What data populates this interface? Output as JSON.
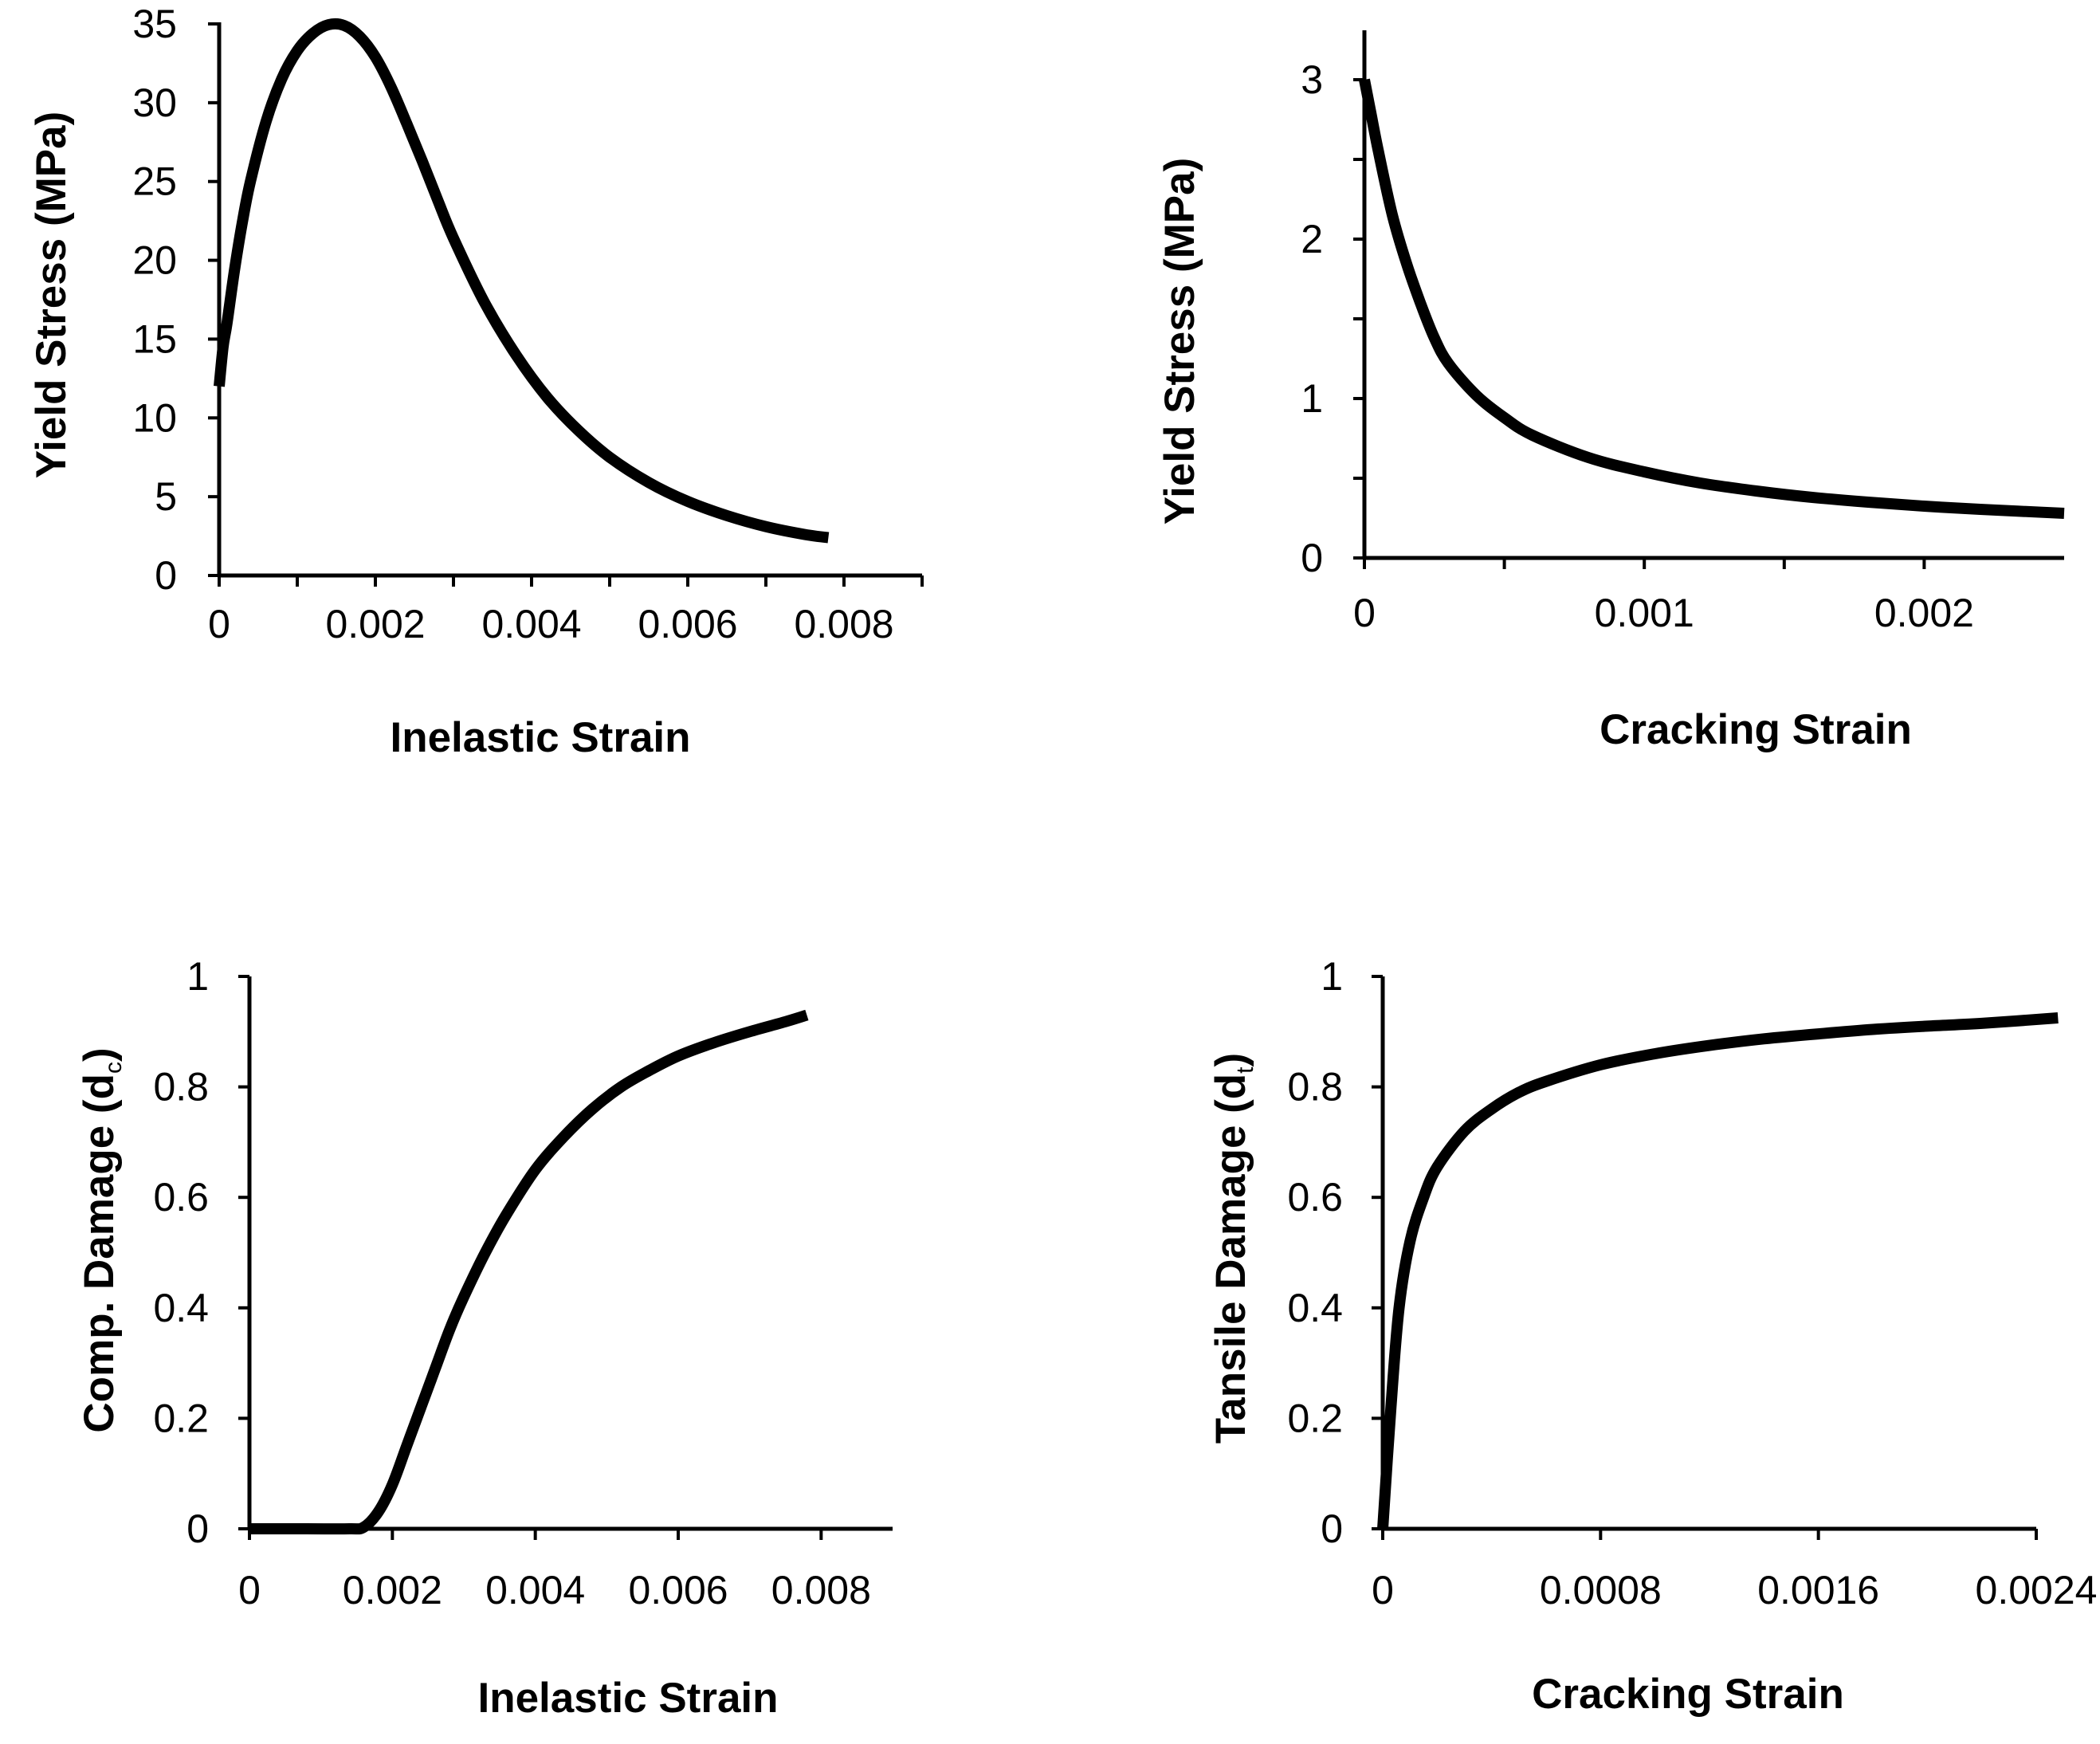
{
  "chart_data": [
    {
      "id": "yield-compression",
      "type": "line",
      "title": "",
      "xlabel": "Inelastic Strain",
      "ylabel": "Yield Stress (MPa)",
      "xlim": [
        0,
        0.009
      ],
      "ylim": [
        0,
        35
      ],
      "xticks": [
        0,
        0.002,
        0.004,
        0.006,
        0.008
      ],
      "xtick_labels": [
        "0",
        "0.002",
        "0.004",
        "0.006",
        "0.008"
      ],
      "x_minor_ticks": [
        0.001,
        0.003,
        0.005,
        0.007,
        0.009
      ],
      "yticks": [
        0,
        5,
        10,
        15,
        20,
        25,
        30,
        35
      ],
      "ytick_labels": [
        "0",
        "5",
        "10",
        "15",
        "20",
        "25",
        "30",
        "35"
      ],
      "y_minor_ticks": [],
      "series": [
        {
          "name": "Yield Stress",
          "color": "#000000",
          "x": [
            0,
            5e-05,
            0.0001,
            0.0002,
            0.0003,
            0.0004,
            0.0006,
            0.0008,
            0.001,
            0.0012,
            0.0014,
            0.0016,
            0.0018,
            0.002,
            0.0022,
            0.0024,
            0.0026,
            0.0028,
            0.003,
            0.0034,
            0.0038,
            0.0042,
            0.0046,
            0.005,
            0.0055,
            0.006,
            0.0065,
            0.007,
            0.0075,
            0.0078
          ],
          "y": [
            12,
            14.5,
            16,
            19.5,
            22.5,
            25,
            28.8,
            31.5,
            33.3,
            34.4,
            34.95,
            34.9,
            34.2,
            32.9,
            31,
            28.7,
            26.3,
            23.8,
            21.4,
            17.3,
            14,
            11.3,
            9.2,
            7.5,
            5.9,
            4.7,
            3.8,
            3.1,
            2.6,
            2.4
          ]
        }
      ]
    },
    {
      "id": "yield-tension",
      "type": "line",
      "title": "",
      "xlabel": "Cracking Strain",
      "ylabel": "Yield Stress (MPa)",
      "xlim": [
        0,
        0.0025
      ],
      "ylim": [
        0,
        3.3
      ],
      "xticks": [
        0,
        0.001,
        0.002
      ],
      "xtick_labels": [
        "0",
        "0.001",
        "0.002"
      ],
      "x_minor_ticks": [
        0.0005,
        0.0015
      ],
      "yticks": [
        0,
        1,
        2,
        3
      ],
      "ytick_labels": [
        "0",
        "1",
        "2",
        "3"
      ],
      "y_minor_ticks": [
        0.5,
        1.5,
        2.5
      ],
      "series": [
        {
          "name": "Yield Stress",
          "color": "#000000",
          "x": [
            0,
            2e-05,
            5e-05,
            0.0001,
            0.00015,
            0.0002,
            0.00025,
            0.0003,
            0.0004,
            0.0005,
            0.0006,
            0.0008,
            0.001,
            0.0012,
            0.0014,
            0.0016,
            0.0018,
            0.002,
            0.0022,
            0.0025
          ],
          "y": [
            3,
            2.82,
            2.55,
            2.15,
            1.85,
            1.6,
            1.38,
            1.22,
            1.02,
            0.88,
            0.77,
            0.63,
            0.54,
            0.47,
            0.42,
            0.38,
            0.35,
            0.325,
            0.305,
            0.28
          ]
        }
      ]
    },
    {
      "id": "damage-compression",
      "type": "line",
      "title": "",
      "xlabel": "Inelastic Strain",
      "ylabel": "Comp. Damage (d",
      "ylabel_sub": "c",
      "ylabel_suffix": ")",
      "xlim": [
        0,
        0.009
      ],
      "ylim": [
        0,
        1
      ],
      "xticks": [
        0,
        0.002,
        0.004,
        0.006,
        0.008
      ],
      "xtick_labels": [
        "0",
        "0.002",
        "0.004",
        "0.006",
        "0.008"
      ],
      "x_minor_ticks": [],
      "yticks": [
        0,
        0.2,
        0.4,
        0.6,
        0.8,
        1
      ],
      "ytick_labels": [
        "0",
        "0.2",
        "0.4",
        "0.6",
        "0.8",
        "1"
      ],
      "y_minor_ticks": [],
      "series": [
        {
          "name": "Compressive Damage",
          "color": "#000000",
          "x": [
            0,
            0.0008,
            0.0014,
            0.0016,
            0.0018,
            0.002,
            0.0022,
            0.0024,
            0.0026,
            0.0028,
            0.003,
            0.0033,
            0.0036,
            0.004,
            0.0044,
            0.0048,
            0.0052,
            0.0056,
            0.006,
            0.0065,
            0.007,
            0.0075,
            0.0078
          ],
          "y": [
            0,
            0,
            0,
            0.003,
            0.03,
            0.08,
            0.15,
            0.22,
            0.29,
            0.36,
            0.42,
            0.5,
            0.57,
            0.65,
            0.71,
            0.76,
            0.8,
            0.83,
            0.856,
            0.88,
            0.9,
            0.918,
            0.93
          ]
        }
      ]
    },
    {
      "id": "damage-tension",
      "type": "line",
      "title": "",
      "xlabel": "Cracking Strain",
      "ylabel": "Tansile Damage (d",
      "ylabel_sub": "t",
      "ylabel_suffix": ")",
      "xlim": [
        0,
        0.0024
      ],
      "ylim": [
        0,
        1
      ],
      "xticks": [
        0,
        0.0008,
        0.0016,
        0.0024
      ],
      "xtick_labels": [
        "0",
        "0.0008",
        "0.0016",
        "0.0024"
      ],
      "x_minor_ticks": [],
      "yticks": [
        0,
        0.2,
        0.4,
        0.6,
        0.8,
        1
      ],
      "ytick_labels": [
        "0",
        "0.2",
        "0.4",
        "0.6",
        "0.8",
        "1"
      ],
      "y_minor_ticks": [],
      "series": [
        {
          "name": "Tensile Damage",
          "color": "#000000",
          "x": [
            0,
            3e-05,
            6e-05,
            0.0001,
            0.00015,
            0.0002,
            0.0003,
            0.0004,
            0.0005,
            0.0006,
            0.0008,
            0.001,
            0.0012,
            0.0014,
            0.0016,
            0.0018,
            0.002,
            0.0022,
            0.00248
          ],
          "y": [
            0,
            0.22,
            0.4,
            0.52,
            0.6,
            0.655,
            0.72,
            0.76,
            0.79,
            0.81,
            0.84,
            0.86,
            0.875,
            0.887,
            0.896,
            0.904,
            0.91,
            0.915,
            0.925
          ]
        }
      ]
    }
  ]
}
